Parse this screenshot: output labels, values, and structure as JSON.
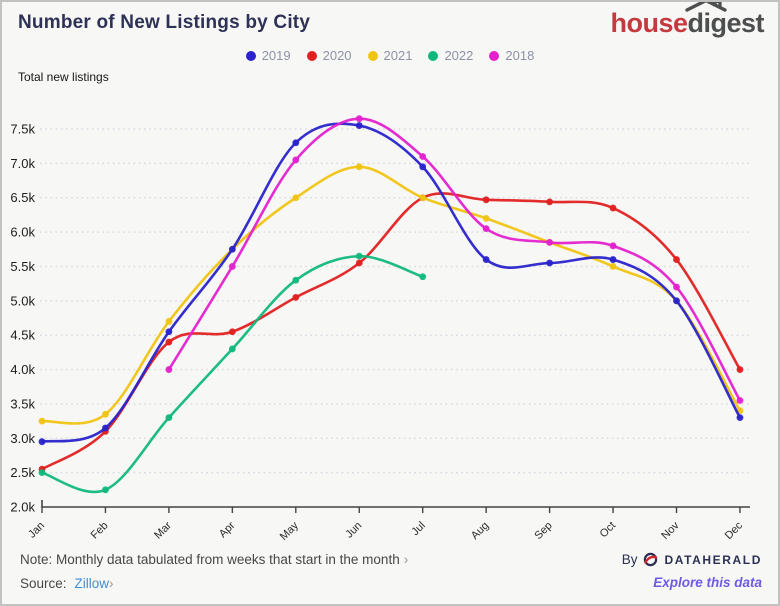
{
  "header": {
    "title": "Number of New Listings by City",
    "logo_part1": "house",
    "logo_part2": "digest"
  },
  "subtitle": "Total new listings",
  "footer": {
    "note_text": "Note: Monthly data tabulated from weeks that start in the month",
    "note_chevron": "›",
    "source_label": "Source:",
    "source_link": "Zillow",
    "source_chevron": "›",
    "by_label": "By",
    "brand": "DATAHERALD",
    "explore_link": "Explore this data"
  },
  "colors": {
    "background": "#f7f7f5",
    "title": "#2e3256",
    "legend_text": "#8d92a6",
    "gridline": "#d9d8e3",
    "axis": "#444444",
    "tick_label": "#1d1d1d",
    "month_label": "#2b2b2b",
    "logo_red": "#c43a3f",
    "logo_gray": "#4d4f4f",
    "source_link": "#418fd2",
    "explore_link": "#6e5be4",
    "brand_navy": "#2b3054",
    "brand_swoosh": "#d0262c"
  },
  "chart_data": {
    "type": "line",
    "title": "Number of New Listings by City",
    "ylabel": "Total new listings",
    "x": [
      "Jan",
      "Feb",
      "Mar",
      "Apr",
      "May",
      "Jun",
      "Jul",
      "Aug",
      "Sep",
      "Oct",
      "Nov",
      "Dec"
    ],
    "ylim": [
      2000,
      7500
    ],
    "ytick_step": 500,
    "ytick_format": "k",
    "grid": "dotted-horizontal",
    "legend_position": "top-center",
    "series": [
      {
        "name": "2019",
        "color": "#2a23cb",
        "values": [
          2950,
          3150,
          4550,
          5750,
          7300,
          7550,
          6950,
          5600,
          5550,
          5600,
          5000,
          3300
        ]
      },
      {
        "name": "2020",
        "color": "#e02020",
        "values": [
          2550,
          3100,
          4400,
          4550,
          5050,
          5550,
          6500,
          6470,
          6440,
          6350,
          5600,
          4000
        ]
      },
      {
        "name": "2021",
        "color": "#f0c413",
        "values": [
          3250,
          3350,
          4700,
          5750,
          6500,
          6950,
          6500,
          6200,
          5850,
          5500,
          5000,
          3400
        ]
      },
      {
        "name": "2022",
        "color": "#10b87c",
        "values": [
          2500,
          2250,
          3300,
          4300,
          5300,
          5650,
          5350,
          null,
          null,
          null,
          null,
          null
        ]
      },
      {
        "name": "2018",
        "color": "#e321cd",
        "values": [
          null,
          null,
          4000,
          5500,
          7050,
          7650,
          7100,
          6050,
          5850,
          5800,
          5200,
          3550
        ]
      }
    ]
  }
}
